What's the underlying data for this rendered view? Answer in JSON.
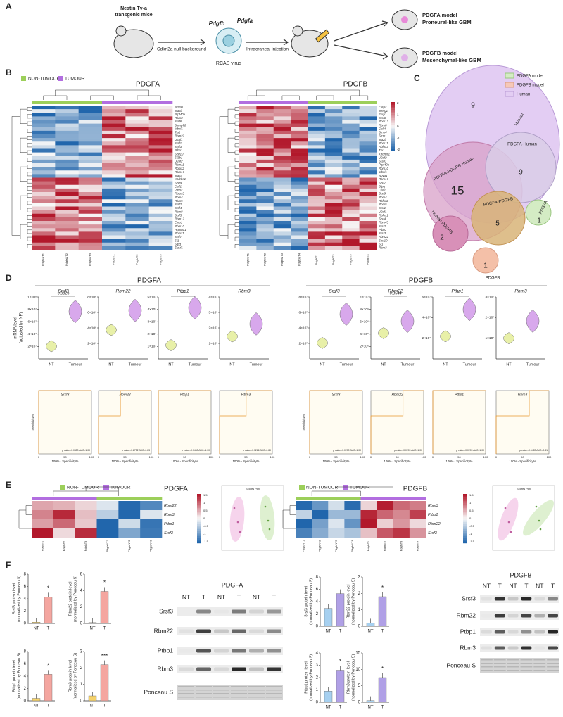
{
  "panel_labels": [
    "A",
    "B",
    "C",
    "D",
    "E",
    "F"
  ],
  "schema": {
    "mouse_line1": "Nestin Tv-a",
    "mouse_line2": "transgenic mice",
    "background": "Cdkn2a null background",
    "gene_b": "Pdgfb",
    "gene_a": "Pdgfa",
    "virus": "RCAS virus",
    "injection": "Intracraneal injection",
    "model_a": "PDGFA model",
    "model_a_type": "Proneural-like GBM",
    "model_b": "PDGFB model",
    "model_b_type": "Mesenchymal-like GBM"
  },
  "heatmap_legend": [
    "NON-TUMOUR",
    "TUMOUR"
  ],
  "heatmaps": [
    {
      "title": "PDGFA",
      "genes": [
        "Nova1",
        "Tra2b",
        "Prpf40a",
        "Rbm3",
        "Srsf6",
        "Snrnp70",
        "Mbnl1",
        "Tia1",
        "Rbm22",
        "U2af1",
        "Srsf1",
        "Srsf3",
        "Ptbp1",
        "Srsf10",
        "Sf3b1",
        "U2af2",
        "Rbm11",
        "Rbfox2",
        "Rbm17",
        "Tra2a",
        "Khdrbs1",
        "Srsf9",
        "Celf1",
        "Ptbp2",
        "Rbfox3",
        "Rbm4",
        "Rbm5",
        "Srsf2",
        "Srsf4",
        "Rbm8",
        "Srsf5",
        "Rbm12",
        "Esrp1",
        "Rbm10",
        "Hnrnpa1",
        "Rbfox1",
        "Srsf7",
        "Sf1",
        "Sfpq",
        "Elavl1"
      ],
      "samples": [
        "PdgfaNT1",
        "PdgfaNT2",
        "PdgfaNT3",
        "PdgfaT1",
        "PdgfaT2",
        "PdgfaT3"
      ]
    },
    {
      "title": "PDGFB",
      "genes": [
        "Esrp2",
        "Tcerg1",
        "Esrp1",
        "Srsf6",
        "Rbm12",
        "Rbm8",
        "Celf4",
        "Srrm4",
        "Srrm",
        "Tra2b",
        "Rbm11",
        "Rbfox3",
        "Tia1",
        "Khdrbs1",
        "U2af2",
        "Sf3b1",
        "Prpf40a",
        "Rbm10",
        "Mbnl1",
        "Nova1",
        "Rbm17",
        "Srsf7",
        "Sfpq",
        "Celf1",
        "Srsf9",
        "Rbm4",
        "Rbfox2",
        "Rbm5",
        "Srsf1",
        "U2af1",
        "Rbfox1",
        "Srsf4",
        "Rbm45",
        "Srsf2",
        "Ptbp1",
        "Srsf3",
        "Rbm22",
        "Srsf10",
        "Sf1",
        "Rbm3"
      ],
      "samples": [
        "PdgfbNT1",
        "PdgfbNT2",
        "PdgfbNT3",
        "PdgfbNT4",
        "PdgfbT1",
        "PdgfbT2",
        "PdgfbT3",
        "PdgfbT4"
      ],
      "colorbar": [
        2,
        1,
        0,
        -1,
        -2
      ]
    }
  ],
  "venn": {
    "legend": [
      "PDGFA model",
      "PDGFB model",
      "Human"
    ],
    "regions": [
      {
        "label": "Human",
        "count": 9
      },
      {
        "label": "PDGFA-Human",
        "count": 9
      },
      {
        "label": "PDGFA-PDGFB-Human",
        "count": 15
      },
      {
        "label": "PDGFA",
        "count": 1
      },
      {
        "label": "PDGFA-PDGFB",
        "count": 5
      },
      {
        "label": "Human-PDGFB",
        "count": 2
      },
      {
        "label": "PDGFB",
        "count": 1
      }
    ]
  },
  "qpcr": {
    "y_label": "mRNA level",
    "y_label_2": "(adjusted by NF)",
    "groups": [
      "NT",
      "Tumour"
    ],
    "roc_x_label": "100% - Specificity%",
    "roc_y_label": "Sensitivity%",
    "roc_ticks": [
      0,
      50,
      100
    ],
    "panels": [
      {
        "title": "PDGFA",
        "plots": [
          {
            "gene": "Srsf3",
            "yticks": [
              "2×10⁷",
              "4×10⁷",
              "6×10⁷",
              "8×10⁷",
              "1×10⁸"
            ],
            "annotation": "0.0923",
            "roc": "p value=0.0450 AUC=1.00"
          },
          {
            "gene": "Rbm22",
            "yticks": [
              "2×10⁶",
              "4×10⁶",
              "6×10⁶",
              "8×10⁶"
            ],
            "roc": "p value=0.2752 AUC=0.83"
          },
          {
            "gene": "Ptbp1",
            "yticks": [
              "1×10⁷",
              "2×10⁷",
              "3×10⁷",
              "4×10⁷",
              "5×10⁷"
            ],
            "annotation": "***",
            "roc": "p value=0.0450 AUC=1.00"
          },
          {
            "gene": "Rbm3",
            "yticks": [
              "1×10⁷",
              "2×10⁷",
              "3×10⁷",
              "4×10⁷"
            ],
            "roc": "p value=0.1266 AUC=0.89"
          }
        ]
      },
      {
        "title": "PDGFB",
        "plots": [
          {
            "gene": "Srsf3",
            "yticks": [
              "2×10⁷",
              "4×10⁷",
              "6×10⁷",
              "8×10⁷"
            ],
            "annotation": "**",
            "roc": "p value=0.0209 AUC=1.00"
          },
          {
            "gene": "Rbm22",
            "yticks": [
              "2×10⁶",
              "4×10⁶",
              "6×10⁶",
              "8×10⁶",
              "1×10⁷"
            ],
            "annotation": "0.0544",
            "roc": "p value=0.0209 AUC=1.00"
          },
          {
            "gene": "Ptbp1",
            "yticks": [
              "2×10⁷",
              "4×10⁷",
              "6×10⁷"
            ],
            "annotation": "*",
            "roc": "p value=0.0209 AUC=1.00"
          },
          {
            "gene": "Rbm3",
            "yticks": [
              "1×10⁷",
              "2×10⁷",
              "3×10⁷"
            ],
            "roc": "p value=0.1489 AUC=0.81"
          }
        ]
      }
    ]
  },
  "expression": {
    "scores_title": "Scores Plot",
    "panels": [
      {
        "title": "PDGFA",
        "genes": [
          "Rbm22",
          "Rbm3",
          "Ptbp1",
          "Srsf3"
        ],
        "samples": [
          "PdgfaT1",
          "PdgfaT2",
          "PdgfaT3",
          "PdgfaNT1",
          "PdgfaNT2",
          "PdgfaNT3"
        ],
        "colorbar": [
          1.5,
          1,
          0.5,
          0,
          -0.5,
          -1,
          -1.5
        ]
      },
      {
        "title": "PDGFB",
        "genes": [
          "Rbm3",
          "Ptbp1",
          "Rbm22",
          "Srsf3"
        ],
        "samples": [
          "PdgfbNT1",
          "PdgfbNT2",
          "PdgfbNT3",
          "PdgfbNT4",
          "PdgfbT1",
          "PdgfbT2",
          "PdgfbT3",
          "PdgfbT4"
        ],
        "colorbar": [
          1.5,
          1,
          0.5,
          0,
          -0.5,
          -1,
          -1.5
        ]
      }
    ]
  },
  "western": {
    "y_label_2": "(normalized by Ponceau S)",
    "groups": [
      "NT",
      "T"
    ],
    "panels": [
      {
        "title": "PDGFA",
        "lanes": [
          "NT",
          "T",
          "NT",
          "T",
          "NT",
          "T"
        ],
        "rows": [
          "Srsf3",
          "Rbm22",
          "Ptbp1",
          "Rbm3",
          "Ponceau S"
        ],
        "bars": [
          {
            "y_label": "Srsf3 protein level",
            "values": [
              0.2,
              4.3
            ],
            "ylim": [
              0,
              8
            ],
            "yticks": [
              0,
              2,
              4,
              6,
              8
            ],
            "annotation": "*"
          },
          {
            "y_label": "Rbm22 protein level",
            "values": [
              0.1,
              3.9
            ],
            "ylim": [
              0,
              6
            ],
            "yticks": [
              0,
              2,
              4,
              6
            ],
            "annotation": "*"
          },
          {
            "y_label": "Ptbp1 protein level",
            "values": [
              0.4,
              4.3
            ],
            "ylim": [
              0,
              8
            ],
            "yticks": [
              0,
              2,
              4,
              6,
              8
            ],
            "annotation": "*"
          },
          {
            "y_label": "Rbm3 protein level",
            "values": [
              0.3,
              2.2
            ],
            "ylim": [
              0,
              3
            ],
            "yticks": [
              0,
              1,
              2,
              3
            ],
            "annotation": "***"
          }
        ]
      },
      {
        "title": "PDGFB",
        "lanes": [
          "NT",
          "T",
          "NT",
          "T",
          "NT",
          "T"
        ],
        "rows": [
          "Srsf3",
          "Rbm22",
          "Ptbp1",
          "Rbm3",
          "Ponceau S"
        ],
        "bars": [
          {
            "y_label": "Srsf3 protein level",
            "values": [
              2.9,
              5.3
            ],
            "ylim": [
              0,
              8
            ],
            "yticks": [
              0,
              2,
              4,
              6,
              8
            ]
          },
          {
            "y_label": "Rbm22 protein level",
            "values": [
              0.2,
              1.8
            ],
            "ylim": [
              0,
              3
            ],
            "yticks": [
              0,
              1,
              2,
              3
            ],
            "annotation": "*"
          },
          {
            "y_label": "Ptbp1 protein level",
            "values": [
              0.9,
              2.6
            ],
            "ylim": [
              0,
              4
            ],
            "yticks": [
              0,
              1,
              2,
              3,
              4
            ],
            "annotation": "*"
          },
          {
            "y_label": "Rbm3 protein level",
            "values": [
              0.5,
              7.5
            ],
            "ylim": [
              0,
              15
            ],
            "yticks": [
              0,
              5,
              10,
              15
            ],
            "annotation": "*"
          }
        ]
      }
    ]
  }
}
